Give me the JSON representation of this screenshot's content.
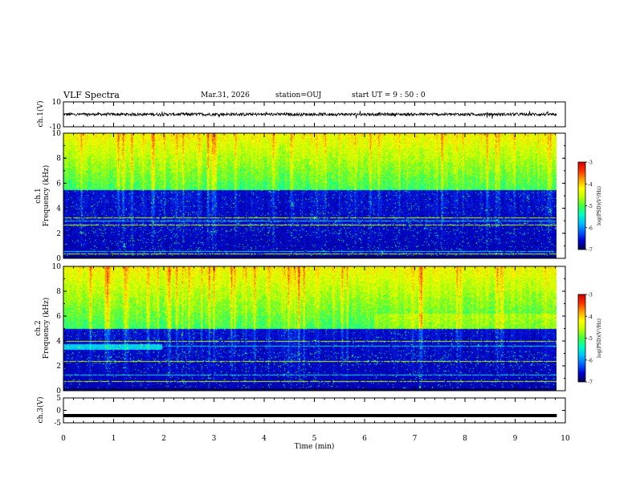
{
  "header": {
    "title": "VLF Spectra",
    "date": "Mar.31, 2026",
    "station": "station=OUJ",
    "start_ut": "start UT =  9 : 50 : 0"
  },
  "chart_data": [
    {
      "type": "line",
      "panel": "ch1-waveform",
      "ylabel": "ch.1(V)",
      "ylim": [
        -10,
        10
      ],
      "yticks": [
        10,
        -10
      ],
      "x_range_min": [
        0,
        9.83
      ],
      "approx_level_v": 0,
      "approx_spread_v": 2
    },
    {
      "type": "heatmap",
      "panel": "ch1-spectrogram",
      "ylabel_line1": "ch.1",
      "ylabel_line2": "Frequency (kHz)",
      "ylim": [
        0,
        10
      ],
      "yticks": [
        0,
        2,
        4,
        6,
        8,
        10
      ],
      "x_range_min": [
        0,
        9.83
      ],
      "colorbar_label": "log(PSD)(V²/Hz)",
      "colorbar_range": [
        -7,
        -3
      ],
      "colorbar_ticks": [
        -3,
        -4,
        -5,
        -6,
        -7
      ],
      "approx_noise_boundary_khz": 5.5,
      "lines_khz": [
        0.4,
        0.6,
        2.7,
        3.0,
        3.3
      ]
    },
    {
      "type": "heatmap",
      "panel": "ch2-spectrogram",
      "ylabel_line1": "ch.2",
      "ylabel_line2": "Frequency (kHz)",
      "ylim": [
        0,
        10
      ],
      "yticks": [
        0,
        2,
        4,
        6,
        8,
        10
      ],
      "x_range_min": [
        0,
        9.83
      ],
      "colorbar_label": "log(PSD)(V²/Hz)",
      "colorbar_range": [
        -7,
        -3
      ],
      "colorbar_ticks": [
        -3,
        -4,
        -5,
        -6,
        -7
      ],
      "approx_noise_boundary_khz": 5.0,
      "lines_khz": [
        0.8,
        1.3,
        2.4,
        3.6,
        4.0
      ]
    },
    {
      "type": "line",
      "panel": "ch3-waveform",
      "ylabel": "ch.3(V)",
      "ylim": [
        -5,
        5
      ],
      "yticks": [
        5,
        0,
        -5
      ],
      "x_range_min": [
        0,
        9.83
      ],
      "approx_level_v": -2.1
    }
  ],
  "xaxis": {
    "label": "Time (min)",
    "range": [
      0,
      10
    ],
    "ticks": [
      0,
      1,
      2,
      3,
      4,
      5,
      6,
      7,
      8,
      9,
      10
    ]
  },
  "colormap": [
    "#000050",
    "#0000d0",
    "#0060ff",
    "#00c0ff",
    "#00ffc0",
    "#40ff40",
    "#c0ff00",
    "#ffff00",
    "#ffa000",
    "#ff3000",
    "#d00000",
    "#ffffff"
  ]
}
